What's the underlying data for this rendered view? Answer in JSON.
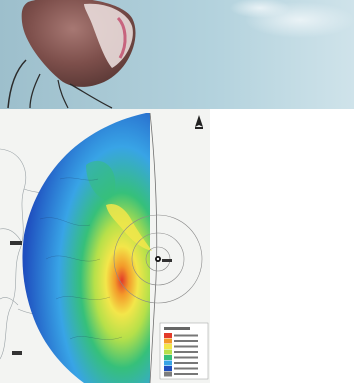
{
  "photo": {
    "subject": "balloon-in-sky",
    "colors": {
      "sky": "#a9c9d6",
      "balloon": "#8a5a55",
      "balloon_highlight": "#e7d9d7",
      "balloon_accent": "#c24a6a"
    }
  },
  "map": {
    "caption": "",
    "north_symbol": "north-arrow",
    "plant_marker": "radiation-source-marker",
    "colors": {
      "land": "#f3f4f2",
      "sea": "#ffffff",
      "boundaries": "#9aa2a6",
      "range_circles": "#8a8a8a",
      "low": "#1f4fbf",
      "mid_low": "#38a4e6",
      "mid": "#36c07a",
      "mid_high": "#b6e04a",
      "high": "#f3e64a",
      "very_high": "#f39a2a",
      "extreme": "#e23a2a"
    },
    "legend": {
      "entries": [
        "",
        "",
        "",
        "",
        "",
        "",
        "",
        ""
      ],
      "colors": [
        "#e23a2a",
        "#f39a2a",
        "#f3e64a",
        "#b6e04a",
        "#36c07a",
        "#38a4e6",
        "#1f4fbf",
        "#7d7d7d"
      ]
    }
  }
}
